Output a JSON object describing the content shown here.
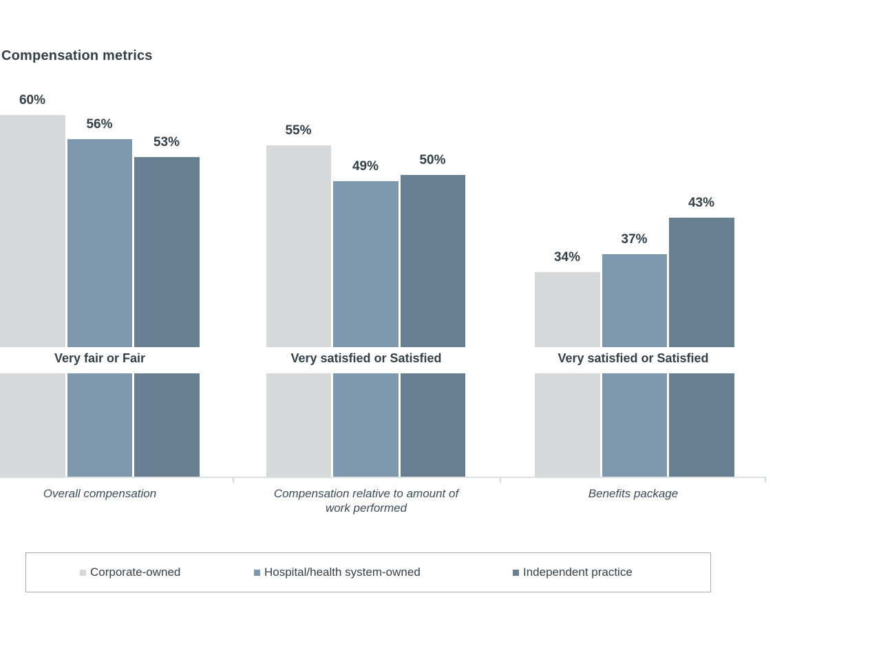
{
  "page": {
    "background": "#ffffff"
  },
  "chart_data": {
    "type": "bar",
    "title": "Compensation metrics",
    "categories": [
      "Overall compensation",
      "Compensation relative to amount of\nwork performed",
      "Benefits package"
    ],
    "group_sublabels": [
      "Very fair or Fair",
      "Very satisfied or Satisfied",
      "Very satisfied or Satisfied"
    ],
    "series": [
      {
        "name": "Corporate-owned",
        "values": [
          60,
          55,
          34
        ],
        "color": "#d6d9da"
      },
      {
        "name": "Hospital/health system-owned",
        "values": [
          56,
          49,
          37
        ],
        "color": "#7e99ad"
      },
      {
        "name": "Independent practice",
        "values": [
          53,
          50,
          43
        ],
        "color": "#687e91"
      }
    ],
    "value_labels": [
      [
        "60%",
        "55%",
        "34%"
      ],
      [
        "56%",
        "49%",
        "37%"
      ],
      [
        "53%",
        "50%",
        "43%"
      ]
    ],
    "value_suffix": "%",
    "ylim": [
      0,
      65
    ],
    "grid": false,
    "legend_position": "bottom"
  },
  "colors": {
    "text_dark": "#333f48",
    "axis": "#dbe0e4",
    "legend_border": "#a6aaad",
    "series": [
      "#d6d9da",
      "#7e99ad",
      "#687e91"
    ]
  },
  "legend": {
    "items": [
      {
        "label": "Corporate-owned",
        "color": "#d6d9da"
      },
      {
        "label": "Hospital/health system-owned",
        "color": "#7e99ad"
      },
      {
        "label": "Independent practice",
        "color": "#687e91"
      }
    ]
  }
}
